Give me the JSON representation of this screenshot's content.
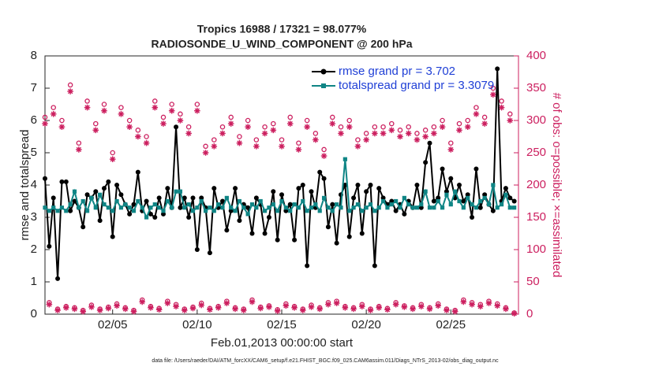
{
  "chart_data": {
    "type": "line",
    "title": "Tropics 16988 / 17321 = 98.077%",
    "subtitle": "RADIOSONDE_U_WIND_COMPONENT @ 200 hPa",
    "x_label": "Feb.01,2013 00:00:00 start",
    "y_label": "rmse and totalspread",
    "y2_label": "# of obs: o=possible; ×=assimilated",
    "footnote": "data file: /Users/raeder/DAI/ATM_forcXX/CAM6_setup/f.e21.FHIST_BGC.f09_025.CAM6assim.011/Diags_NTrS_2013-02/obs_diag_output.nc",
    "legend_position": "upper right",
    "legend_text_color": "#1f3fd6",
    "axis2_color": "#cc1f5f",
    "grid": false,
    "xlim": [
      1,
      29
    ],
    "xticks": [
      {
        "value": 5,
        "label": "02/05"
      },
      {
        "value": 10,
        "label": "02/10"
      },
      {
        "value": 15,
        "label": "02/15"
      },
      {
        "value": 20,
        "label": "02/20"
      },
      {
        "value": 25,
        "label": "02/25"
      }
    ],
    "ylim": [
      0,
      8
    ],
    "yticks": [
      0,
      1,
      2,
      3,
      4,
      5,
      6,
      7,
      8
    ],
    "y2lim": [
      0,
      400
    ],
    "y2ticks": [
      0,
      50,
      100,
      150,
      200,
      250,
      300,
      350,
      400
    ],
    "x": [
      1,
      1.25,
      1.5,
      1.75,
      2,
      2.25,
      2.5,
      2.75,
      3,
      3.25,
      3.5,
      3.75,
      4,
      4.25,
      4.5,
      4.75,
      5,
      5.25,
      5.5,
      5.75,
      6,
      6.25,
      6.5,
      6.75,
      7,
      7.25,
      7.5,
      7.75,
      8,
      8.25,
      8.5,
      8.75,
      9,
      9.25,
      9.5,
      9.75,
      10,
      10.25,
      10.5,
      10.75,
      11,
      11.25,
      11.5,
      11.75,
      12,
      12.25,
      12.5,
      12.75,
      13,
      13.25,
      13.5,
      13.75,
      14,
      14.25,
      14.5,
      14.75,
      15,
      15.25,
      15.5,
      15.75,
      16,
      16.25,
      16.5,
      16.75,
      17,
      17.25,
      17.5,
      17.75,
      18,
      18.25,
      18.5,
      18.75,
      19,
      19.25,
      19.5,
      19.75,
      20,
      20.25,
      20.5,
      20.75,
      21,
      21.25,
      21.5,
      21.75,
      22,
      22.25,
      22.5,
      22.75,
      23,
      23.25,
      23.5,
      23.75,
      24,
      24.25,
      24.5,
      24.75,
      25,
      25.25,
      25.5,
      25.75,
      26,
      26.25,
      26.5,
      26.75,
      27,
      27.25,
      27.5,
      27.75,
      28,
      28.25,
      28.5,
      28.75
    ],
    "series": [
      {
        "name": "rmse grand pr = 3.702",
        "color": "#000000",
        "marker": "circle",
        "values": [
          4.2,
          2.1,
          3.6,
          1.1,
          4.1,
          4.1,
          3.2,
          3.5,
          3.3,
          2.7,
          3.7,
          3.6,
          3.8,
          2.9,
          3.9,
          4.1,
          2.4,
          4.0,
          3.7,
          3.4,
          3.1,
          3.4,
          4.4,
          3.2,
          3.5,
          3.1,
          3.0,
          3.6,
          3.1,
          3.9,
          3.3,
          5.8,
          3.3,
          3.6,
          3.0,
          3.6,
          2.0,
          3.6,
          3.3,
          1.9,
          3.9,
          3.3,
          3.5,
          2.6,
          3.2,
          3.9,
          2.9,
          3.4,
          3.3,
          2.5,
          3.6,
          3.4,
          2.5,
          3.0,
          3.8,
          2.3,
          3.7,
          3.2,
          3.4,
          2.3,
          3.9,
          4.0,
          1.5,
          3.8,
          3.3,
          4.4,
          4.2,
          2.7,
          3.4,
          2.2,
          3.7,
          4.0,
          2.4,
          3.6,
          4.0,
          2.5,
          3.8,
          4.0,
          1.5,
          3.9,
          3.6,
          3.4,
          3.5,
          3.2,
          3.4,
          3.1,
          3.5,
          3.3,
          4.0,
          3.3,
          4.7,
          5.3,
          3.5,
          3.6,
          4.5,
          3.8,
          4.2,
          3.6,
          4.0,
          3.5,
          3.7,
          3.0,
          4.5,
          3.3,
          3.7,
          3.4,
          3.2,
          7.6,
          3.5,
          3.9,
          3.6,
          3.5
        ]
      },
      {
        "name": "totalspread grand pr = 3.3079",
        "color": "#0f8585",
        "marker": "square",
        "values": [
          3.3,
          3.2,
          3.3,
          3.2,
          3.3,
          3.2,
          3.4,
          3.8,
          3.3,
          3.5,
          3.2,
          3.6,
          3.3,
          3.7,
          3.4,
          3.3,
          3.2,
          3.5,
          3.3,
          3.4,
          3.3,
          3.2,
          3.5,
          3.3,
          3.0,
          3.3,
          3.4,
          3.3,
          3.2,
          3.5,
          3.3,
          3.8,
          3.8,
          3.3,
          3.4,
          3.2,
          3.3,
          3.5,
          3.2,
          3.3,
          3.2,
          3.4,
          3.3,
          3.6,
          3.3,
          3.2,
          3.5,
          3.3,
          3.1,
          3.4,
          3.3,
          3.5,
          3.2,
          3.3,
          3.4,
          3.2,
          3.5,
          3.3,
          3.2,
          3.4,
          3.3,
          3.5,
          3.2,
          3.3,
          3.4,
          3.2,
          3.6,
          3.3,
          3.2,
          3.4,
          3.3,
          4.8,
          3.2,
          3.3,
          3.4,
          3.2,
          3.3,
          3.4,
          3.2,
          3.3,
          3.5,
          3.3,
          3.4,
          3.5,
          3.3,
          3.6,
          3.4,
          3.3,
          3.3,
          3.4,
          3.8,
          3.3,
          3.3,
          3.5,
          3.3,
          3.7,
          3.4,
          3.8,
          3.5,
          3.3,
          3.6,
          3.4,
          3.3,
          3.5,
          3.6,
          3.4,
          4.0,
          3.3,
          3.4,
          3.7,
          3.3,
          3.3
        ]
      }
    ],
    "y2_series": [
      {
        "axis": "y2",
        "color": "#cc1f5f",
        "marker": "o",
        "values": [
          305,
          18,
          320,
          8,
          300,
          12,
          355,
          10,
          265,
          6,
          330,
          14,
          295,
          8,
          325,
          11,
          250,
          16,
          320,
          10,
          300,
          6,
          285,
          22,
          275,
          12,
          330,
          9,
          305,
          20,
          325,
          15,
          310,
          8,
          290,
          11,
          325,
          17,
          260,
          9,
          270,
          12,
          290,
          20,
          305,
          10,
          275,
          8,
          300,
          22,
          270,
          11,
          290,
          13,
          295,
          7,
          270,
          16,
          305,
          12,
          265,
          8,
          300,
          14,
          280,
          10,
          255,
          18,
          305,
          20,
          290,
          12,
          300,
          10,
          270,
          15,
          280,
          8,
          290,
          12,
          290,
          9,
          295,
          18,
          285,
          13,
          290,
          10,
          280,
          15,
          285,
          10,
          290,
          16,
          300,
          8,
          265,
          6,
          295,
          22,
          300,
          18,
          320,
          15,
          305,
          20,
          350,
          16,
          330,
          10,
          310,
          2
        ]
      },
      {
        "axis": "y2",
        "color": "#cc1f5f",
        "marker": "*",
        "values": [
          295,
          15,
          310,
          6,
          290,
          10,
          345,
          8,
          255,
          4,
          320,
          11,
          285,
          6,
          315,
          9,
          240,
          13,
          310,
          8,
          290,
          4,
          275,
          19,
          265,
          10,
          320,
          7,
          295,
          17,
          315,
          12,
          300,
          6,
          280,
          9,
          315,
          14,
          250,
          7,
          260,
          10,
          280,
          17,
          295,
          8,
          265,
          6,
          290,
          19,
          260,
          9,
          280,
          11,
          285,
          5,
          260,
          13,
          295,
          10,
          255,
          6,
          290,
          11,
          270,
          8,
          245,
          15,
          295,
          17,
          280,
          10,
          290,
          8,
          260,
          12,
          270,
          6,
          280,
          10,
          280,
          7,
          285,
          15,
          275,
          11,
          280,
          8,
          270,
          12,
          275,
          8,
          280,
          13,
          290,
          6,
          255,
          4,
          285,
          19,
          290,
          15,
          310,
          12,
          295,
          17,
          340,
          13,
          320,
          8,
          300,
          1
        ]
      }
    ]
  }
}
